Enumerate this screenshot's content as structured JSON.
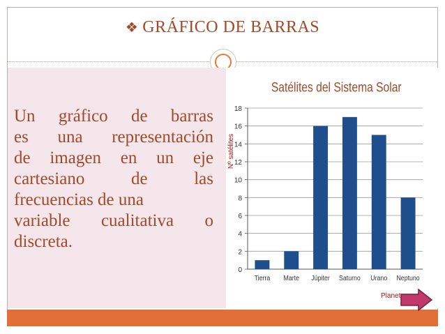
{
  "slide": {
    "title": "GRÁFICO DE BARRAS",
    "bullet_icon": "diamond-bullet-icon",
    "body_lines": [
      "Un gráfico de barras",
      "es una representación",
      "de imagen en un eje",
      "cartesiano de las",
      "frecuencias de una",
      "variable cualitativa o",
      "discreta."
    ]
  },
  "colors": {
    "accent": "#e07038",
    "text": "#a14a2a",
    "panel": "#f5e6ec",
    "bar": "#1f4e8c"
  },
  "chart_data": {
    "type": "bar",
    "title": "Satélites del Sistema Solar",
    "ylabel": "Nº satélites",
    "xlabel": "Planetas",
    "categories": [
      "Tierra",
      "Marte",
      "Júpiter",
      "Saturno",
      "Urano",
      "Neptuno"
    ],
    "values": [
      1,
      2,
      16,
      17,
      15,
      8
    ],
    "ylim": [
      0,
      18
    ],
    "yticks": [
      0,
      2,
      4,
      6,
      8,
      10,
      12,
      14,
      16,
      18
    ],
    "grid": true,
    "legend": "none"
  },
  "nav": {
    "next_icon": "next-arrow-icon"
  }
}
